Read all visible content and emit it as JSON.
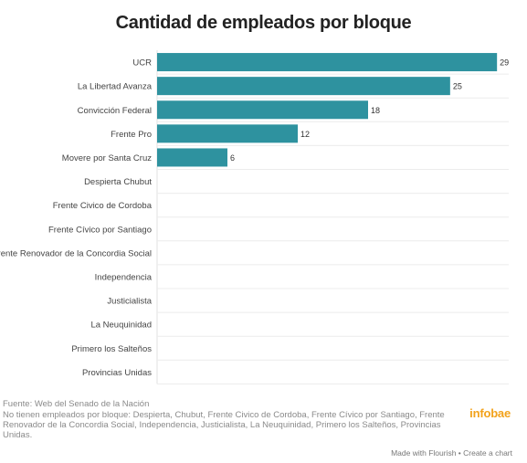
{
  "chart_data": {
    "type": "bar",
    "orientation": "horizontal",
    "title": "Cantidad de empleados por bloque",
    "categories": [
      "UCR",
      "La Libertad Avanza",
      "Convicción Federal",
      "Frente Pro",
      "Movere por Santa Cruz",
      "Despierta Chubut",
      "Frente Civico de Cordoba",
      "Frente Cívico por Santiago",
      "Frente Renovador de la Concordia Social",
      "Independencia",
      "Justicialista",
      "La Neuquinidad",
      "Primero los Salteños",
      "Provincias Unidas"
    ],
    "values": [
      29,
      25,
      18,
      12,
      6,
      0,
      0,
      0,
      0,
      0,
      0,
      0,
      0,
      0
    ],
    "value_labels": [
      "29",
      "25",
      "18",
      "12",
      "6",
      "",
      "",
      "",
      "",
      "",
      "",
      "",
      "",
      ""
    ],
    "xlim": [
      0,
      30
    ],
    "xlabel": "",
    "ylabel": "",
    "grid": true,
    "bar_color": "#2e929f"
  },
  "footer": {
    "source": "Fuente: Web del Senado de la Nación",
    "note": "No tienen empleados por bloque: Despierta, Chubut, Frente Civico de Cordoba, Frente Cívico por Santiago, Frente Renovador de la Concordia Social, Independencia, Justicialista, La Neuquinidad, Primero los Salteños, Provincias Unidas.",
    "brand": "infobae",
    "credit": "Made with Flourish • Create a chart"
  }
}
